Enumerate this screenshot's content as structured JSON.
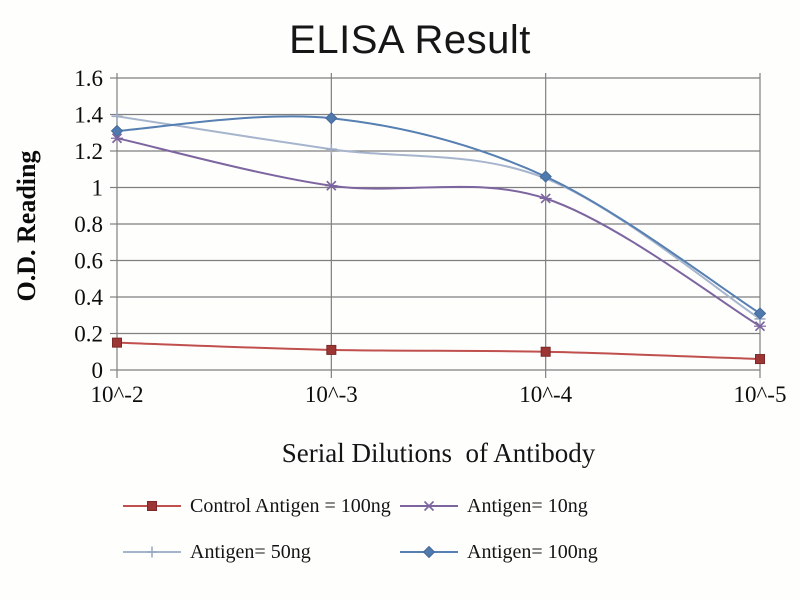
{
  "chart_data": {
    "type": "line",
    "title": "ELISA Result",
    "xlabel": "Serial Dilutions  of Antibody",
    "ylabel": "O.D. Reading",
    "categories": [
      "10^-2",
      "10^-3",
      "10^-4",
      "10^-5"
    ],
    "ylim": [
      0,
      1.6
    ],
    "ytick_step": 0.2,
    "ytick_labels": [
      "0",
      "0.2",
      "0.4",
      "0.6",
      "0.8",
      "1",
      "1.2",
      "1.4",
      "1.6"
    ],
    "grid": true,
    "legend_position": "bottom",
    "line_style": "smooth",
    "axis_color": "#7f7f7f",
    "series": [
      {
        "name": "Control Antigen = 100ng",
        "values": [
          0.15,
          0.11,
          0.1,
          0.06
        ],
        "color": "#c0504d",
        "marker": "square",
        "marker_fill": "#9c3634",
        "marker_stroke": "#7b2927"
      },
      {
        "name": "Antigen= 10ng",
        "values": [
          1.27,
          1.01,
          0.94,
          0.24
        ],
        "color": "#7d65a0",
        "marker": "x",
        "marker_fill": "#7d65a0",
        "marker_stroke": "#7d65a0"
      },
      {
        "name": "Antigen= 50ng",
        "values": [
          1.39,
          1.21,
          1.05,
          0.28
        ],
        "color": "#a6b5cd",
        "marker": "plus",
        "marker_fill": "#a6b5cd",
        "marker_stroke": "#9dabc4"
      },
      {
        "name": "Antigen= 100ng",
        "values": [
          1.31,
          1.38,
          1.06,
          0.31
        ],
        "color": "#567fb2",
        "marker": "diamond",
        "marker_fill": "#4f7aad",
        "marker_stroke": "#46699a"
      }
    ]
  }
}
